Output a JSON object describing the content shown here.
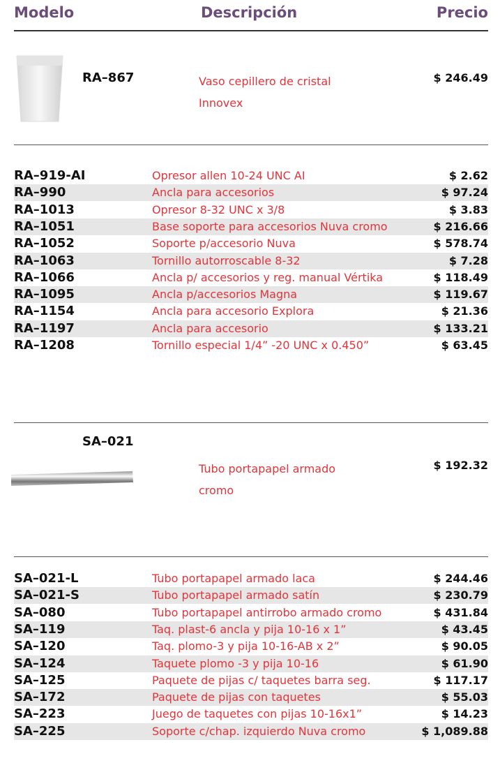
{
  "header": {
    "model": "Modelo",
    "description": "Descripción",
    "price": "Precio"
  },
  "featured": [
    {
      "model": "RA–867",
      "description": "Vaso cepillero de cristal Innovex",
      "price": "$ 246.49"
    },
    {
      "model": "SA–021",
      "description": "Tubo portapapel armado cromo",
      "price": "$ 192.32"
    }
  ],
  "tables": [
    {
      "rows": [
        [
          "RA–919-AI",
          "Opresor allen 10-24 UNC AI",
          "$ 2.62"
        ],
        [
          "RA–990",
          "Ancla para accesorios",
          "$ 97.24"
        ],
        [
          "RA–1013",
          "Opresor 8-32 UNC x 3/8",
          "$ 3.83"
        ],
        [
          "RA–1051",
          "Base soporte para accesorios Nuva cromo",
          "$ 216.66"
        ],
        [
          "RA–1052",
          "Soporte p/accesorio Nuva",
          "$ 578.74"
        ],
        [
          "RA–1063",
          "Tornillo autorroscable 8-32",
          "$ 7.28"
        ],
        [
          "RA–1066",
          "Ancla p/ accesorios y reg. manual Vértika",
          "$ 118.49"
        ],
        [
          "RA–1095",
          "Ancla p/accesorios Magna",
          "$ 119.67"
        ],
        [
          "RA–1154",
          "Ancla para accesorio Explora",
          "$ 21.36"
        ],
        [
          "RA–1197",
          "Ancla para accesorio",
          "$ 133.21"
        ],
        [
          "RA–1208",
          "Tornillo especial 1/4” -20 UNC x 0.450”",
          "$ 63.45"
        ]
      ]
    },
    {
      "rows": [
        [
          "SA–021-L",
          "Tubo portapapel armado laca",
          "$ 244.46"
        ],
        [
          "SA–021-S",
          "Tubo portapapel armado satín",
          "$ 230.79"
        ],
        [
          "SA–080",
          "Tubo portapapel antirrobo armado cromo",
          "$ 431.84"
        ],
        [
          "SA–119",
          "Taq. plast-6 ancla y pija 10-16 x 1”",
          "$ 43.45"
        ],
        [
          "SA–120",
          "Taq. plomo-3 y pija 10-16-AB x 2”",
          "$ 90.05"
        ],
        [
          "SA–124",
          "Taquete plomo -3 y pija 10-16",
          "$ 61.90"
        ],
        [
          "SA–125",
          "Paquete de pijas c/ taquetes barra seg.",
          "$ 117.17"
        ],
        [
          "SA–172",
          "Paquete de pijas con taquetes",
          "$ 55.03"
        ],
        [
          "SA–223",
          "Juego de taquetes con pijas 10-16x1”",
          "$ 14.23"
        ],
        [
          "SA–225",
          "Soporte c/chap. izquierdo Nuva cromo",
          "$ 1,089.88"
        ]
      ]
    }
  ]
}
